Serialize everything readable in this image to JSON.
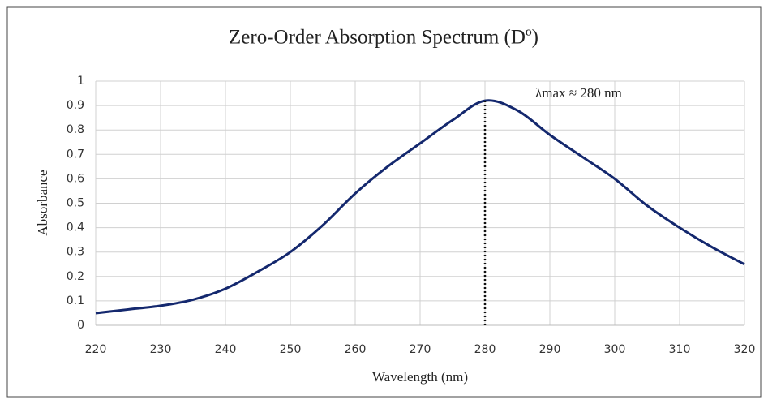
{
  "chart_data": {
    "type": "line",
    "title": "Zero-Order Absorption Spectrum (Dº)",
    "x_label": "Wavelength (nm)",
    "y_label": "Absorbance",
    "x": [
      220,
      225,
      230,
      235,
      240,
      245,
      250,
      255,
      260,
      265,
      270,
      275,
      280,
      285,
      290,
      295,
      300,
      305,
      310,
      315,
      320
    ],
    "series": [
      {
        "name": "Absorbance",
        "color": "#14286e",
        "values": [
          0.05,
          0.065,
          0.08,
          0.105,
          0.15,
          0.22,
          0.3,
          0.41,
          0.54,
          0.65,
          0.745,
          0.84,
          0.92,
          0.88,
          0.78,
          0.69,
          0.6,
          0.49,
          0.4,
          0.32,
          0.25
        ]
      }
    ],
    "annotation": {
      "text": "λmax ≈ 280 nm",
      "x": 280
    },
    "xlim": [
      220,
      320
    ],
    "xticks": [
      220,
      230,
      240,
      250,
      260,
      270,
      280,
      290,
      300,
      310,
      320
    ],
    "ylim": [
      0,
      1
    ],
    "yticks": [
      0,
      0.1,
      0.2,
      0.3,
      0.4,
      0.5,
      0.6,
      0.7,
      0.8,
      0.9,
      1
    ],
    "grid": true
  }
}
